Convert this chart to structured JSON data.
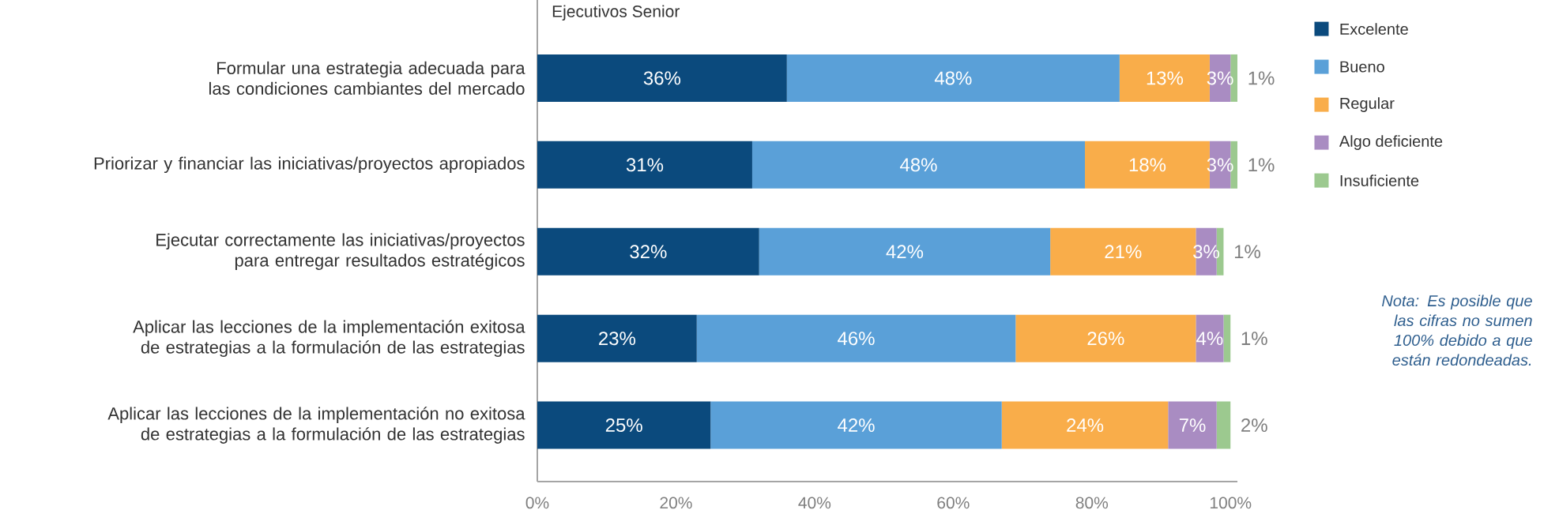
{
  "chart_data": {
    "type": "bar",
    "orientation": "horizontal",
    "stacked": true,
    "title": "Ejecutivos Senior",
    "categories": [
      "Formular una estrategia adecuada para las condiciones cambiantes del mercado",
      "Priorizar y financiar las iniciativas/proyectos apropiados",
      "Ejecutar correctamente las iniciativas/proyectos para entregar resultados estratégicos",
      "Aplicar las lecciones de la implementación exitosa de estrategias a la formulación de las estrategias",
      "Aplicar las lecciones de la implementación no exitosa de estrategias a la formulación de las estrategias"
    ],
    "series": [
      {
        "name": "Excelente",
        "color": "#0b4a7d",
        "values": [
          36,
          31,
          32,
          23,
          25
        ],
        "value_labels": [
          "36%",
          "31%",
          "32%",
          "23%",
          "25%"
        ]
      },
      {
        "name": "Bueno",
        "color": "#5aa0d8",
        "values": [
          48,
          48,
          42,
          46,
          42
        ],
        "value_labels": [
          "48%",
          "48%",
          "42%",
          "46%",
          "42%"
        ]
      },
      {
        "name": "Regular",
        "color": "#f9ad4a",
        "values": [
          13,
          18,
          21,
          26,
          24
        ],
        "value_labels": [
          "13%",
          "18%",
          "21%",
          "26%",
          "24%"
        ]
      },
      {
        "name": "Algo deficiente",
        "color": "#a98cc2",
        "values": [
          3,
          3,
          3,
          4,
          7
        ],
        "value_labels": [
          "3%",
          "3%",
          "3%",
          "4%",
          "7%"
        ]
      },
      {
        "name": "Insuficiente",
        "color": "#9cc98f",
        "values": [
          1,
          1,
          1,
          1,
          2
        ],
        "value_labels": [
          "1%",
          "1%",
          "1%",
          "1%",
          "2%"
        ]
      }
    ],
    "xlim": [
      0,
      101
    ],
    "xticks": [
      {
        "value": 0,
        "label": "0%"
      },
      {
        "value": 20,
        "label": "20%"
      },
      {
        "value": 40,
        "label": "40%"
      },
      {
        "value": 60,
        "label": "60%"
      },
      {
        "value": 80,
        "label": "80%"
      },
      {
        "value": 100,
        "label": "100%"
      }
    ],
    "legend": "right",
    "grid": false,
    "annotations": [
      "Nota: Es posible que las cifras no sumen 100% debido a que están redondeadas."
    ]
  }
}
